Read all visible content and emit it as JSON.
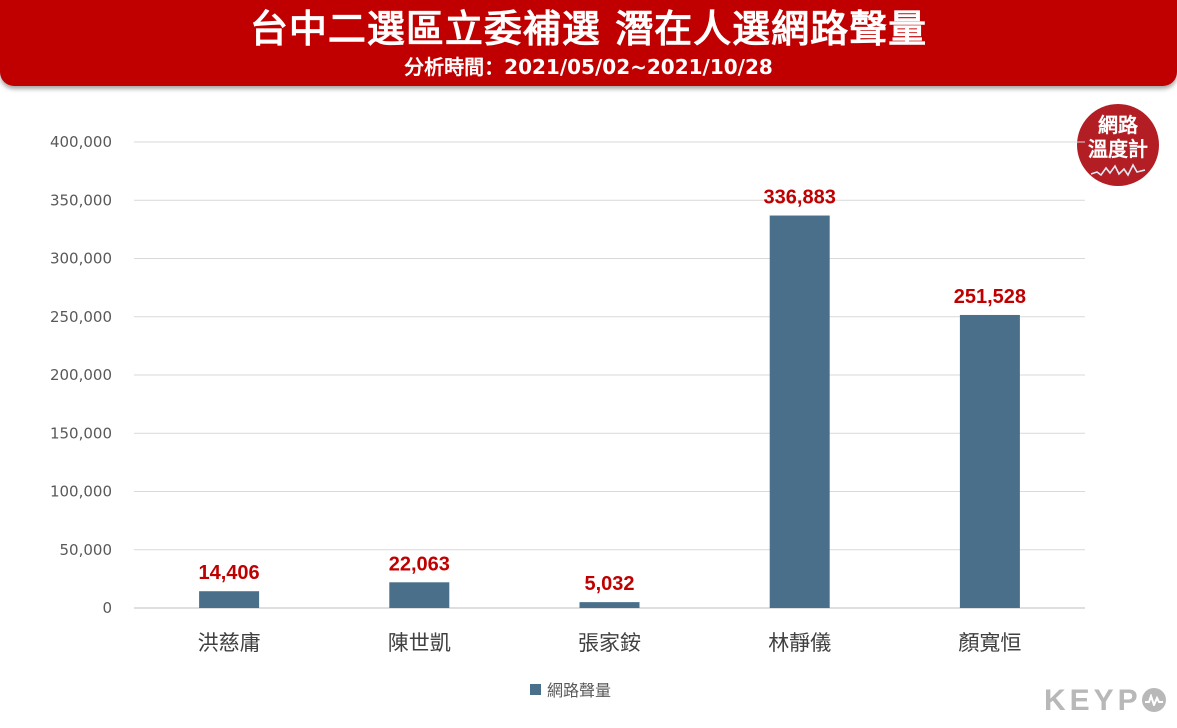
{
  "header": {
    "title": "台中二選區立委補選 潛在人選網路聲量",
    "subtitle": "分析時間：2021/05/02~2021/10/28"
  },
  "badge": {
    "line1": "網路",
    "line2": "溫度計",
    "icon": "pulse-line-icon"
  },
  "brand": {
    "text_start": "KEYP",
    "o_icon": "keypo-o-logo-icon"
  },
  "colors": {
    "header_bg": "#c00000",
    "bar": "#4a6f8a",
    "data_label": "#c00000",
    "grid": "#d9d9d9"
  },
  "chart_data": {
    "type": "bar",
    "categories": [
      "洪慈庸",
      "陳世凱",
      "張家銨",
      "林靜儀",
      "顏寬恒"
    ],
    "series": [
      {
        "name": "網路聲量",
        "values": [
          14406,
          22063,
          5032,
          336883,
          251528
        ]
      }
    ],
    "data_labels": [
      "14,406",
      "22,063",
      "5,032",
      "336,883",
      "251,528"
    ],
    "yticks": [
      "0",
      "50,000",
      "100,000",
      "150,000",
      "200,000",
      "250,000",
      "300,000",
      "350,000",
      "400,000"
    ],
    "ylim": [
      0,
      400000
    ],
    "ystep": 50000,
    "grid": true,
    "legend": "bottom-center"
  }
}
